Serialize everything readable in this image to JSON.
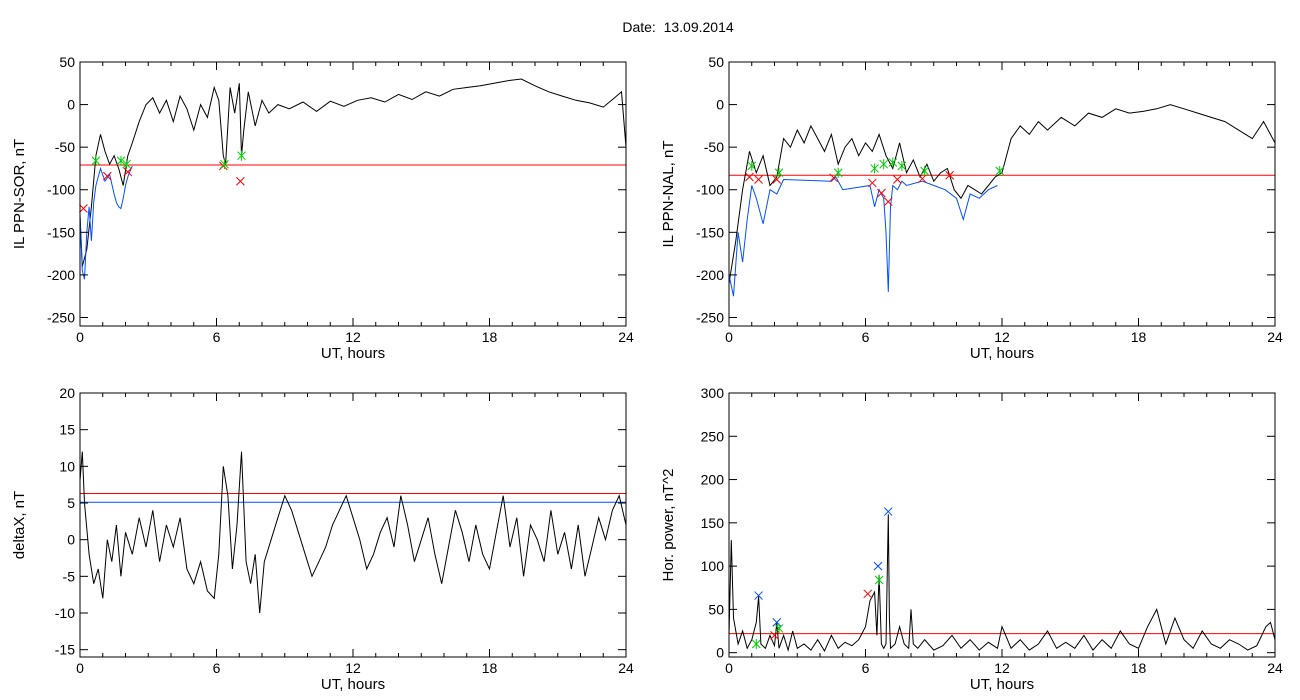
{
  "header": {
    "date_label": "Date:",
    "date_value": "13.09.2014"
  },
  "chart_data": [
    {
      "type": "line",
      "title": "",
      "xlabel": "UT, hours",
      "ylabel": "IL PPN-SOR, nT",
      "xlim": [
        0,
        24
      ],
      "ylim": [
        -260,
        50
      ],
      "xticks": [
        0,
        6,
        12,
        18,
        24
      ],
      "yticks": [
        50,
        0,
        -50,
        -100,
        -150,
        -200,
        -250
      ],
      "threshold": {
        "value": -71,
        "color": "#ff0000"
      },
      "series": [
        {
          "color": "#000000",
          "x": [
            0,
            0.1,
            0.3,
            0.5,
            0.7,
            0.9,
            1.1,
            1.3,
            1.5,
            1.7,
            1.9,
            2.1,
            2.3,
            2.6,
            2.9,
            3.2,
            3.5,
            3.8,
            4.1,
            4.4,
            4.7,
            5.0,
            5.3,
            5.6,
            5.9,
            6.1,
            6.3,
            6.4,
            6.6,
            6.8,
            7.0,
            7.1,
            7.2,
            7.4,
            7.7,
            8.0,
            8.3,
            8.7,
            9.2,
            9.8,
            10.4,
            11.0,
            11.6,
            12.2,
            12.8,
            13.4,
            14.0,
            14.6,
            15.2,
            15.8,
            16.4,
            17.0,
            17.6,
            18.2,
            18.8,
            19.4,
            20.0,
            20.6,
            21.2,
            21.8,
            22.4,
            23.0,
            23.5,
            23.8,
            24.0
          ],
          "y": [
            -130,
            -190,
            -170,
            -120,
            -60,
            -35,
            -55,
            -70,
            -60,
            -75,
            -95,
            -60,
            -45,
            -20,
            0,
            8,
            -10,
            5,
            -20,
            10,
            -5,
            -30,
            0,
            -15,
            20,
            5,
            -60,
            -70,
            20,
            -10,
            25,
            -60,
            -30,
            15,
            -25,
            5,
            -10,
            0,
            -5,
            3,
            -8,
            4,
            -2,
            5,
            8,
            3,
            12,
            6,
            15,
            10,
            18,
            20,
            22,
            25,
            28,
            30,
            22,
            15,
            10,
            5,
            2,
            -3,
            8,
            15,
            -50
          ]
        },
        {
          "color": "#0050ff",
          "x": [
            0,
            0.1,
            0.2,
            0.3,
            0.4,
            0.5,
            0.6,
            0.7,
            0.9,
            1.1,
            1.3,
            1.5,
            1.6,
            1.7,
            1.8,
            1.9,
            2.0,
            2.1,
            2.2,
            2.3
          ],
          "y": [
            -130,
            -195,
            -205,
            -150,
            -120,
            -160,
            -115,
            -95,
            -75,
            -90,
            -82,
            -105,
            -115,
            -120,
            -122,
            -110,
            -95,
            -85,
            -78,
            -72
          ]
        }
      ],
      "markers": [
        {
          "x": 0.15,
          "y": -122,
          "color": "#ff0000",
          "symbol": "x"
        },
        {
          "x": 0.7,
          "y": -66,
          "color": "#00cc00",
          "symbol": "star"
        },
        {
          "x": 1.2,
          "y": -84,
          "color": "#ff0000",
          "symbol": "x"
        },
        {
          "x": 1.8,
          "y": -66,
          "color": "#00cc00",
          "symbol": "star"
        },
        {
          "x": 2.05,
          "y": -70,
          "color": "#00cc00",
          "symbol": "star"
        },
        {
          "x": 2.1,
          "y": -79,
          "color": "#ff0000",
          "symbol": "x"
        },
        {
          "x": 6.3,
          "y": -72,
          "color": "#ff0000",
          "symbol": "x"
        },
        {
          "x": 6.35,
          "y": -70,
          "color": "#00cc00",
          "symbol": "star"
        },
        {
          "x": 7.05,
          "y": -90,
          "color": "#ff0000",
          "symbol": "x"
        },
        {
          "x": 7.1,
          "y": -60,
          "color": "#00cc00",
          "symbol": "star"
        }
      ]
    },
    {
      "type": "line",
      "title": "",
      "xlabel": "UT, hours",
      "ylabel": "IL PPN-NAL, nT",
      "xlim": [
        0,
        24
      ],
      "ylim": [
        -260,
        50
      ],
      "xticks": [
        0,
        6,
        12,
        18,
        24
      ],
      "yticks": [
        50,
        0,
        -50,
        -100,
        -150,
        -200,
        -250
      ],
      "threshold": {
        "value": -83,
        "color": "#ff0000"
      },
      "series": [
        {
          "color": "#000000",
          "x": [
            0,
            0.3,
            0.6,
            0.9,
            1.2,
            1.5,
            1.8,
            2.1,
            2.4,
            2.7,
            3.0,
            3.3,
            3.6,
            3.9,
            4.2,
            4.5,
            4.8,
            5.1,
            5.4,
            5.7,
            6.0,
            6.3,
            6.6,
            6.9,
            7.2,
            7.5,
            7.8,
            8.1,
            8.4,
            8.7,
            9.0,
            9.3,
            9.6,
            9.9,
            10.2,
            10.5,
            10.8,
            11.1,
            11.4,
            11.7,
            12.0,
            12.4,
            12.8,
            13.2,
            13.6,
            14.0,
            14.6,
            15.2,
            15.8,
            16.4,
            17.0,
            17.6,
            18.2,
            18.8,
            19.4,
            20.0,
            20.6,
            21.2,
            21.8,
            22.4,
            23.0,
            23.5,
            24.0
          ],
          "y": [
            -210,
            -160,
            -100,
            -55,
            -80,
            -60,
            -95,
            -85,
            -40,
            -50,
            -30,
            -45,
            -25,
            -40,
            -55,
            -35,
            -70,
            -50,
            -40,
            -60,
            -45,
            -55,
            -35,
            -60,
            -75,
            -45,
            -80,
            -65,
            -85,
            -70,
            -90,
            -80,
            -75,
            -100,
            -110,
            -95,
            -100,
            -105,
            -95,
            -85,
            -80,
            -40,
            -25,
            -35,
            -20,
            -30,
            -15,
            -25,
            -10,
            -15,
            -5,
            -10,
            -8,
            -5,
            0,
            -5,
            -10,
            -15,
            -20,
            -30,
            -40,
            -20,
            -45
          ]
        },
        {
          "color": "#0050ff",
          "x": [
            0,
            0.2,
            0.4,
            0.6,
            0.8,
            1.0,
            1.2,
            1.5,
            1.8,
            2.1,
            2.4,
            4.5,
            4.7,
            5.0,
            6.2,
            6.4,
            6.6,
            6.8,
            6.9,
            7.0,
            7.1,
            7.2,
            7.4,
            7.6,
            7.8,
            8.5,
            9.0,
            9.5,
            10.0,
            10.3,
            10.6,
            11.0,
            11.4,
            11.8
          ],
          "y": [
            -200,
            -225,
            -150,
            -185,
            -135,
            -95,
            -110,
            -140,
            -100,
            -105,
            -88,
            -90,
            -85,
            -100,
            -95,
            -120,
            -100,
            -110,
            -150,
            -220,
            -120,
            -95,
            -100,
            -90,
            -95,
            -90,
            -95,
            -100,
            -110,
            -135,
            -105,
            -110,
            -100,
            -95
          ]
        }
      ],
      "markers": [
        {
          "x": 0.9,
          "y": -85,
          "color": "#ff0000",
          "symbol": "x"
        },
        {
          "x": 1.0,
          "y": -72,
          "color": "#00cc00",
          "symbol": "star"
        },
        {
          "x": 1.3,
          "y": -88,
          "color": "#ff0000",
          "symbol": "x"
        },
        {
          "x": 2.1,
          "y": -88,
          "color": "#ff0000",
          "symbol": "x"
        },
        {
          "x": 2.2,
          "y": -80,
          "color": "#00cc00",
          "symbol": "star"
        },
        {
          "x": 4.6,
          "y": -86,
          "color": "#ff0000",
          "symbol": "x"
        },
        {
          "x": 4.8,
          "y": -80,
          "color": "#00cc00",
          "symbol": "star"
        },
        {
          "x": 6.3,
          "y": -92,
          "color": "#ff0000",
          "symbol": "x"
        },
        {
          "x": 6.4,
          "y": -75,
          "color": "#00cc00",
          "symbol": "star"
        },
        {
          "x": 6.7,
          "y": -104,
          "color": "#ff0000",
          "symbol": "x"
        },
        {
          "x": 6.8,
          "y": -70,
          "color": "#00cc00",
          "symbol": "star"
        },
        {
          "x": 7.0,
          "y": -114,
          "color": "#ff0000",
          "symbol": "x"
        },
        {
          "x": 7.2,
          "y": -68,
          "color": "#00cc00",
          "symbol": "star"
        },
        {
          "x": 7.4,
          "y": -88,
          "color": "#ff0000",
          "symbol": "x"
        },
        {
          "x": 7.6,
          "y": -72,
          "color": "#00cc00",
          "symbol": "star"
        },
        {
          "x": 8.5,
          "y": -87,
          "color": "#ff0000",
          "symbol": "x"
        },
        {
          "x": 8.6,
          "y": -78,
          "color": "#00cc00",
          "symbol": "star"
        },
        {
          "x": 9.7,
          "y": -83,
          "color": "#ff0000",
          "symbol": "x"
        },
        {
          "x": 11.9,
          "y": -78,
          "color": "#00cc00",
          "symbol": "star"
        }
      ]
    },
    {
      "type": "line",
      "title": "",
      "xlabel": "UT, hours",
      "ylabel": "deltaX, nT",
      "xlim": [
        0,
        24
      ],
      "ylim": [
        -16,
        20
      ],
      "xticks": [
        0,
        6,
        12,
        18,
        24
      ],
      "yticks": [
        20,
        15,
        10,
        5,
        0,
        -5,
        -10,
        -15
      ],
      "threshold_lines": [
        {
          "value": 6.3,
          "color": "#ff0000"
        },
        {
          "value": 5.1,
          "color": "#0050ff"
        }
      ],
      "series": [
        {
          "color": "#000000",
          "x": [
            0,
            0.1,
            0.2,
            0.4,
            0.6,
            0.8,
            1.0,
            1.2,
            1.4,
            1.6,
            1.8,
            2.0,
            2.3,
            2.6,
            2.9,
            3.2,
            3.5,
            3.8,
            4.1,
            4.4,
            4.7,
            5.0,
            5.3,
            5.6,
            5.9,
            6.1,
            6.3,
            6.5,
            6.7,
            6.9,
            7.1,
            7.3,
            7.5,
            7.7,
            7.9,
            8.1,
            8.4,
            8.7,
            9.0,
            9.3,
            9.6,
            9.9,
            10.2,
            10.5,
            10.8,
            11.1,
            11.4,
            11.7,
            12.0,
            12.3,
            12.6,
            12.9,
            13.2,
            13.5,
            13.8,
            14.1,
            14.4,
            14.7,
            15.0,
            15.3,
            15.6,
            15.9,
            16.2,
            16.5,
            16.8,
            17.1,
            17.4,
            17.7,
            18.0,
            18.3,
            18.6,
            18.9,
            19.2,
            19.5,
            19.8,
            20.1,
            20.4,
            20.7,
            21.0,
            21.3,
            21.6,
            21.9,
            22.2,
            22.5,
            22.8,
            23.1,
            23.4,
            23.7,
            24.0
          ],
          "y": [
            8,
            12,
            5,
            -2,
            -6,
            -4,
            -8,
            0,
            -3,
            2,
            -5,
            1,
            -2,
            3,
            -1,
            4,
            -3,
            2,
            -1,
            3,
            -4,
            -6,
            -3,
            -7,
            -8,
            -2,
            10,
            6,
            -4,
            2,
            12,
            -3,
            -6,
            -2,
            -10,
            -3,
            0,
            3,
            6,
            4,
            1,
            -2,
            -5,
            -3,
            -1,
            2,
            4,
            6,
            3,
            0,
            -4,
            -2,
            1,
            3,
            -1,
            6,
            2,
            -3,
            0,
            3,
            -2,
            -6,
            -1,
            4,
            1,
            -3,
            2,
            -2,
            -4,
            1,
            6,
            -1,
            3,
            -5,
            2,
            0,
            -3,
            4,
            -2,
            1,
            -4,
            2,
            -5,
            -1,
            3,
            0,
            4,
            6,
            2
          ]
        }
      ],
      "markers": []
    },
    {
      "type": "line",
      "title": "",
      "xlabel": "UT, hours",
      "ylabel": "Hor. power, nT^2",
      "xlim": [
        0,
        24
      ],
      "ylim": [
        -5,
        300
      ],
      "xticks": [
        0,
        6,
        12,
        18,
        24
      ],
      "yticks": [
        300,
        250,
        200,
        150,
        100,
        50,
        0
      ],
      "threshold": {
        "value": 22,
        "color": "#ff0000"
      },
      "series": [
        {
          "color": "#000000",
          "x": [
            0,
            0.1,
            0.2,
            0.4,
            0.6,
            0.8,
            1.0,
            1.2,
            1.3,
            1.4,
            1.6,
            1.8,
            2.0,
            2.1,
            2.2,
            2.4,
            2.6,
            2.8,
            3.0,
            3.3,
            3.6,
            3.9,
            4.2,
            4.5,
            4.8,
            5.1,
            5.4,
            5.7,
            6.0,
            6.2,
            6.4,
            6.5,
            6.6,
            6.7,
            6.8,
            6.9,
            7.0,
            7.05,
            7.1,
            7.3,
            7.5,
            7.7,
            7.9,
            8.0,
            8.1,
            8.3,
            8.6,
            9.0,
            9.4,
            9.8,
            10.2,
            10.6,
            11.0,
            11.4,
            11.8,
            12.0,
            12.4,
            12.8,
            13.2,
            13.6,
            14.0,
            14.4,
            14.8,
            15.2,
            15.6,
            16.0,
            16.4,
            16.8,
            17.2,
            17.6,
            18.0,
            18.4,
            18.8,
            19.2,
            19.6,
            20.0,
            20.4,
            20.8,
            21.2,
            21.6,
            22.0,
            22.4,
            22.8,
            23.2,
            23.6,
            23.8,
            24.0
          ],
          "y": [
            20,
            130,
            40,
            10,
            25,
            5,
            15,
            35,
            65,
            10,
            5,
            20,
            8,
            35,
            5,
            20,
            3,
            25,
            5,
            10,
            3,
            15,
            2,
            20,
            5,
            12,
            8,
            15,
            30,
            60,
            70,
            20,
            90,
            10,
            5,
            10,
            160,
            40,
            5,
            10,
            30,
            10,
            5,
            50,
            10,
            5,
            15,
            3,
            8,
            20,
            5,
            15,
            3,
            12,
            5,
            30,
            5,
            15,
            3,
            10,
            25,
            5,
            12,
            5,
            20,
            3,
            15,
            5,
            25,
            10,
            5,
            30,
            50,
            10,
            40,
            15,
            5,
            25,
            10,
            5,
            15,
            10,
            3,
            8,
            30,
            35,
            15
          ]
        }
      ],
      "markers": [
        {
          "x": 1.2,
          "y": 10,
          "color": "#00cc00",
          "symbol": "star"
        },
        {
          "x": 1.3,
          "y": 66,
          "color": "#0050ff",
          "symbol": "x"
        },
        {
          "x": 2.1,
          "y": 35,
          "color": "#0050ff",
          "symbol": "x"
        },
        {
          "x": 2.2,
          "y": 28,
          "color": "#00cc00",
          "symbol": "star"
        },
        {
          "x": 2.0,
          "y": 20,
          "color": "#ff0000",
          "symbol": "x"
        },
        {
          "x": 6.1,
          "y": 68,
          "color": "#ff0000",
          "symbol": "x"
        },
        {
          "x": 6.55,
          "y": 100,
          "color": "#0050ff",
          "symbol": "x"
        },
        {
          "x": 6.6,
          "y": 84,
          "color": "#00cc00",
          "symbol": "star"
        },
        {
          "x": 7.0,
          "y": 163,
          "color": "#0050ff",
          "symbol": "x"
        }
      ]
    }
  ]
}
